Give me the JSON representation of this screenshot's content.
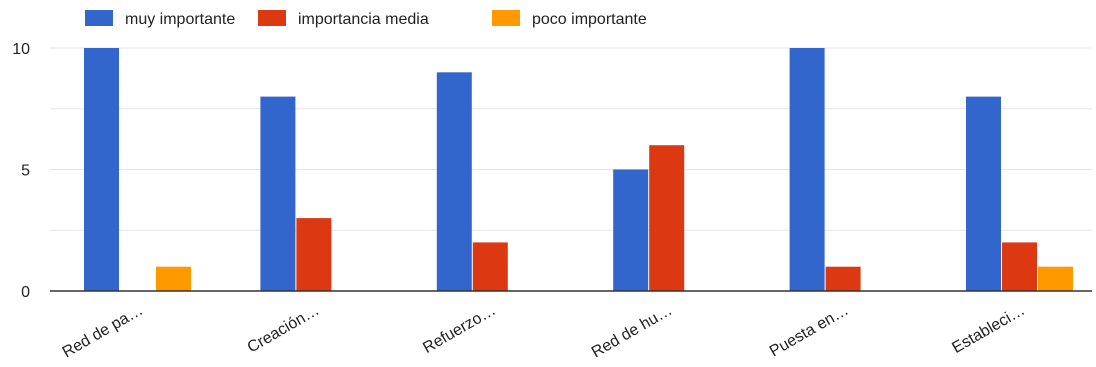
{
  "chart_data": {
    "type": "bar",
    "categories": [
      "Red de pa…",
      "Creación…",
      "Refuerzo…",
      "Red de hu…",
      "Puesta en…",
      "Estableci…"
    ],
    "series": [
      {
        "name": "muy importante",
        "color": "#3366cc",
        "values": [
          10,
          8,
          9,
          5,
          10,
          8
        ]
      },
      {
        "name": "importancia media",
        "color": "#dc3912",
        "values": [
          0,
          3,
          2,
          6,
          1,
          2
        ]
      },
      {
        "name": "poco importante",
        "color": "#ff9900",
        "values": [
          1,
          0,
          0,
          0,
          0,
          1
        ]
      }
    ],
    "y_ticks": [
      "0",
      "5",
      "10"
    ],
    "ylim": [
      0,
      10
    ],
    "grid": true,
    "legend_position": "top-left",
    "colors": {
      "gridline": "#e6e6e6",
      "baseline": "#333333"
    }
  }
}
